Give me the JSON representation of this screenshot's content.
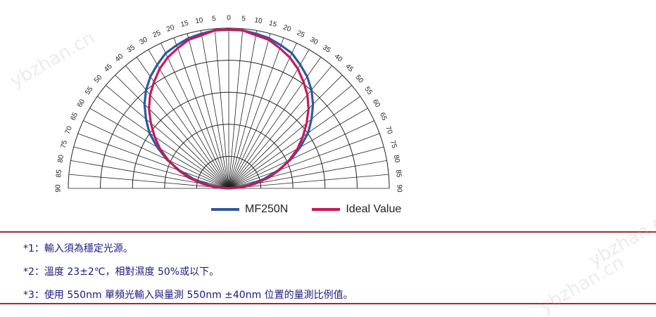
{
  "chart_data": {
    "type": "polar-half",
    "angle_labels_left": [
      "90",
      "85",
      "80",
      "75",
      "70",
      "65",
      "60",
      "55",
      "50",
      "45",
      "40",
      "35",
      "30",
      "25",
      "20",
      "15",
      "10",
      "5",
      "0"
    ],
    "angle_labels_right": [
      "5",
      "10",
      "15",
      "20",
      "25",
      "30",
      "35",
      "40",
      "45",
      "50",
      "55",
      "60",
      "65",
      "70",
      "75",
      "80",
      "85",
      "90"
    ],
    "angles_deg": [
      -90,
      -85,
      -80,
      -75,
      -70,
      -65,
      -60,
      -55,
      -50,
      -45,
      -40,
      -35,
      -30,
      -25,
      -20,
      -15,
      -10,
      -5,
      0,
      5,
      10,
      15,
      20,
      25,
      30,
      35,
      40,
      45,
      50,
      55,
      60,
      65,
      70,
      75,
      80,
      85,
      90
    ],
    "series": [
      {
        "name": "MF250N",
        "color": "#2c5aa0",
        "values": [
          0.0,
          0.05,
          0.13,
          0.23,
          0.33,
          0.43,
          0.52,
          0.61,
          0.68,
          0.75,
          0.81,
          0.86,
          0.9,
          0.94,
          0.96,
          0.98,
          0.99,
          1.0,
          1.0,
          1.0,
          0.99,
          0.98,
          0.96,
          0.94,
          0.9,
          0.86,
          0.81,
          0.75,
          0.68,
          0.61,
          0.52,
          0.43,
          0.33,
          0.23,
          0.13,
          0.05,
          0.0
        ]
      },
      {
        "name": "Ideal Value",
        "color": "#c8185a",
        "values": [
          0.0,
          0.09,
          0.17,
          0.26,
          0.34,
          0.42,
          0.5,
          0.57,
          0.64,
          0.71,
          0.77,
          0.82,
          0.87,
          0.91,
          0.94,
          0.97,
          0.98,
          1.0,
          1.0,
          1.0,
          0.98,
          0.97,
          0.94,
          0.91,
          0.87,
          0.82,
          0.77,
          0.71,
          0.64,
          0.57,
          0.5,
          0.42,
          0.34,
          0.26,
          0.17,
          0.09,
          0.0
        ]
      }
    ],
    "rings": 5,
    "radial_spokes_deg_step": 5
  },
  "legend": {
    "mf250n": "MF250N",
    "ideal": "Ideal Value"
  },
  "notes": {
    "n1": "*1：輸入須為穩定光源。",
    "n2": "*2：溫度 23±2℃，相對濕度 50%或以下。",
    "n3": "*3：使用 550nm 單頻光輸入與量測 550nm  ±40nm  位置的量測比例值。"
  },
  "watermark": "ybzhan.cn"
}
